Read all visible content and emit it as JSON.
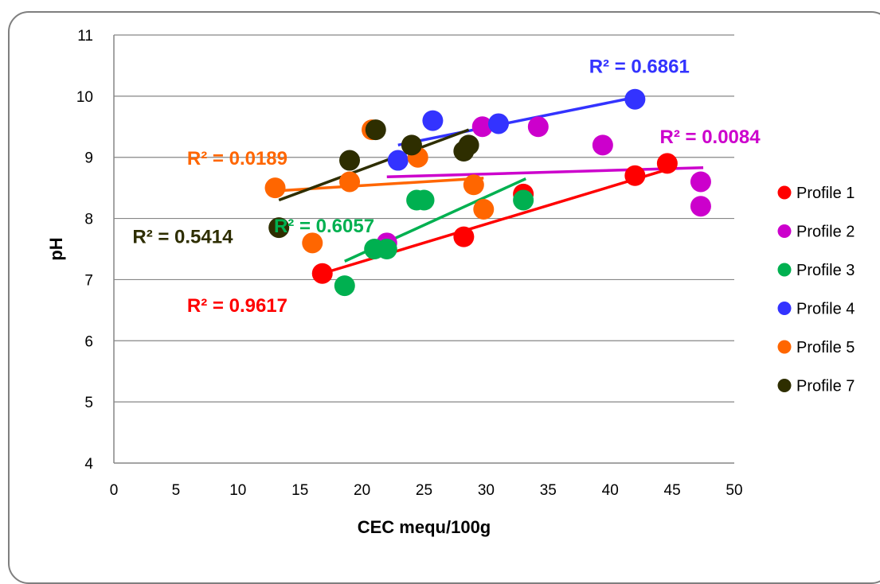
{
  "chart_data": {
    "type": "scatter",
    "xlabel": "CEC mequ/100g",
    "ylabel": "pH",
    "xlim": [
      0,
      50
    ],
    "ylim": [
      4,
      11
    ],
    "xticks": [
      "0",
      "5",
      "10",
      "15",
      "20",
      "25",
      "30",
      "35",
      "40",
      "45",
      "50"
    ],
    "yticks": [
      "4",
      "5",
      "6",
      "7",
      "8",
      "9",
      "10",
      "11"
    ],
    "grid": "horizontal",
    "legend_position": "right",
    "series": [
      {
        "name": "Profile 1",
        "color": "#ff0000",
        "points": [
          [
            16.8,
            7.1
          ],
          [
            28.2,
            7.7
          ],
          [
            33,
            8.4
          ],
          [
            42,
            8.7
          ],
          [
            44.6,
            8.9
          ]
        ],
        "trend": {
          "x": [
            16.8,
            44.6
          ],
          "y": [
            7.1,
            8.8
          ]
        },
        "r2_label": "R² = 0.9617"
      },
      {
        "name": "Profile 2",
        "color": "#cc00cc",
        "points": [
          [
            22,
            7.6
          ],
          [
            29.7,
            9.5
          ],
          [
            34.2,
            9.5
          ],
          [
            39.4,
            9.2
          ],
          [
            47.3,
            8.6
          ],
          [
            47.3,
            8.2
          ]
        ],
        "trend": {
          "x": [
            22,
            47.5
          ],
          "y": [
            8.68,
            8.83
          ]
        },
        "r2_label": "R² = 0.0084"
      },
      {
        "name": "Profile 3",
        "color": "#00b050",
        "points": [
          [
            18.6,
            6.9
          ],
          [
            21,
            7.5
          ],
          [
            22,
            7.5
          ],
          [
            24.4,
            8.3
          ],
          [
            25,
            8.3
          ],
          [
            33,
            8.3
          ]
        ],
        "trend": {
          "x": [
            18.6,
            33.2
          ],
          "y": [
            7.3,
            8.65
          ]
        },
        "r2_label": "R² = 0.6057"
      },
      {
        "name": "Profile 4",
        "color": "#3333ff",
        "points": [
          [
            22.9,
            8.95
          ],
          [
            25.7,
            9.6
          ],
          [
            31,
            9.55
          ],
          [
            42,
            9.95
          ]
        ],
        "trend": {
          "x": [
            22.9,
            42
          ],
          "y": [
            9.2,
            9.98
          ]
        },
        "r2_label": "R² = 0.6861"
      },
      {
        "name": "Profile 5",
        "color": "#ff6600",
        "points": [
          [
            13,
            8.5
          ],
          [
            16,
            7.6
          ],
          [
            19,
            8.6
          ],
          [
            20.8,
            9.45
          ],
          [
            24.5,
            9
          ],
          [
            29,
            8.55
          ],
          [
            29.8,
            8.15
          ]
        ],
        "trend": {
          "x": [
            13,
            29.8
          ],
          "y": [
            8.45,
            8.66
          ]
        },
        "r2_label": "R² = 0.0189"
      },
      {
        "name": "Profile 7",
        "color": "#2e2e00",
        "points": [
          [
            13.3,
            7.85
          ],
          [
            19,
            8.95
          ],
          [
            21.1,
            9.45
          ],
          [
            24,
            9.2
          ],
          [
            28.2,
            9.1
          ],
          [
            28.6,
            9.2
          ]
        ],
        "trend": {
          "x": [
            13.3,
            28.6
          ],
          "y": [
            8.3,
            9.45
          ]
        },
        "r2_label": "R² = 0.5414"
      }
    ]
  }
}
